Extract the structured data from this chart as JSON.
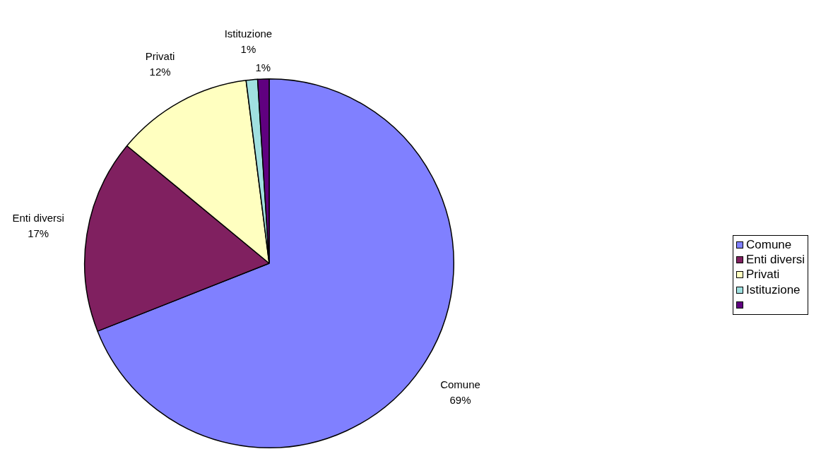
{
  "chart_data": {
    "type": "pie",
    "categories": [
      "Comune",
      "Enti diversi",
      "Privati",
      "Istituzione",
      null
    ],
    "values": [
      69,
      17,
      12,
      1,
      1
    ],
    "colors": [
      "#8080ff",
      "#802060",
      "#ffffc0",
      "#a0e0e0",
      "#600080"
    ],
    "value_labels": [
      "69%",
      "17%",
      "12%",
      "1%",
      "1%"
    ],
    "legend": "right"
  }
}
